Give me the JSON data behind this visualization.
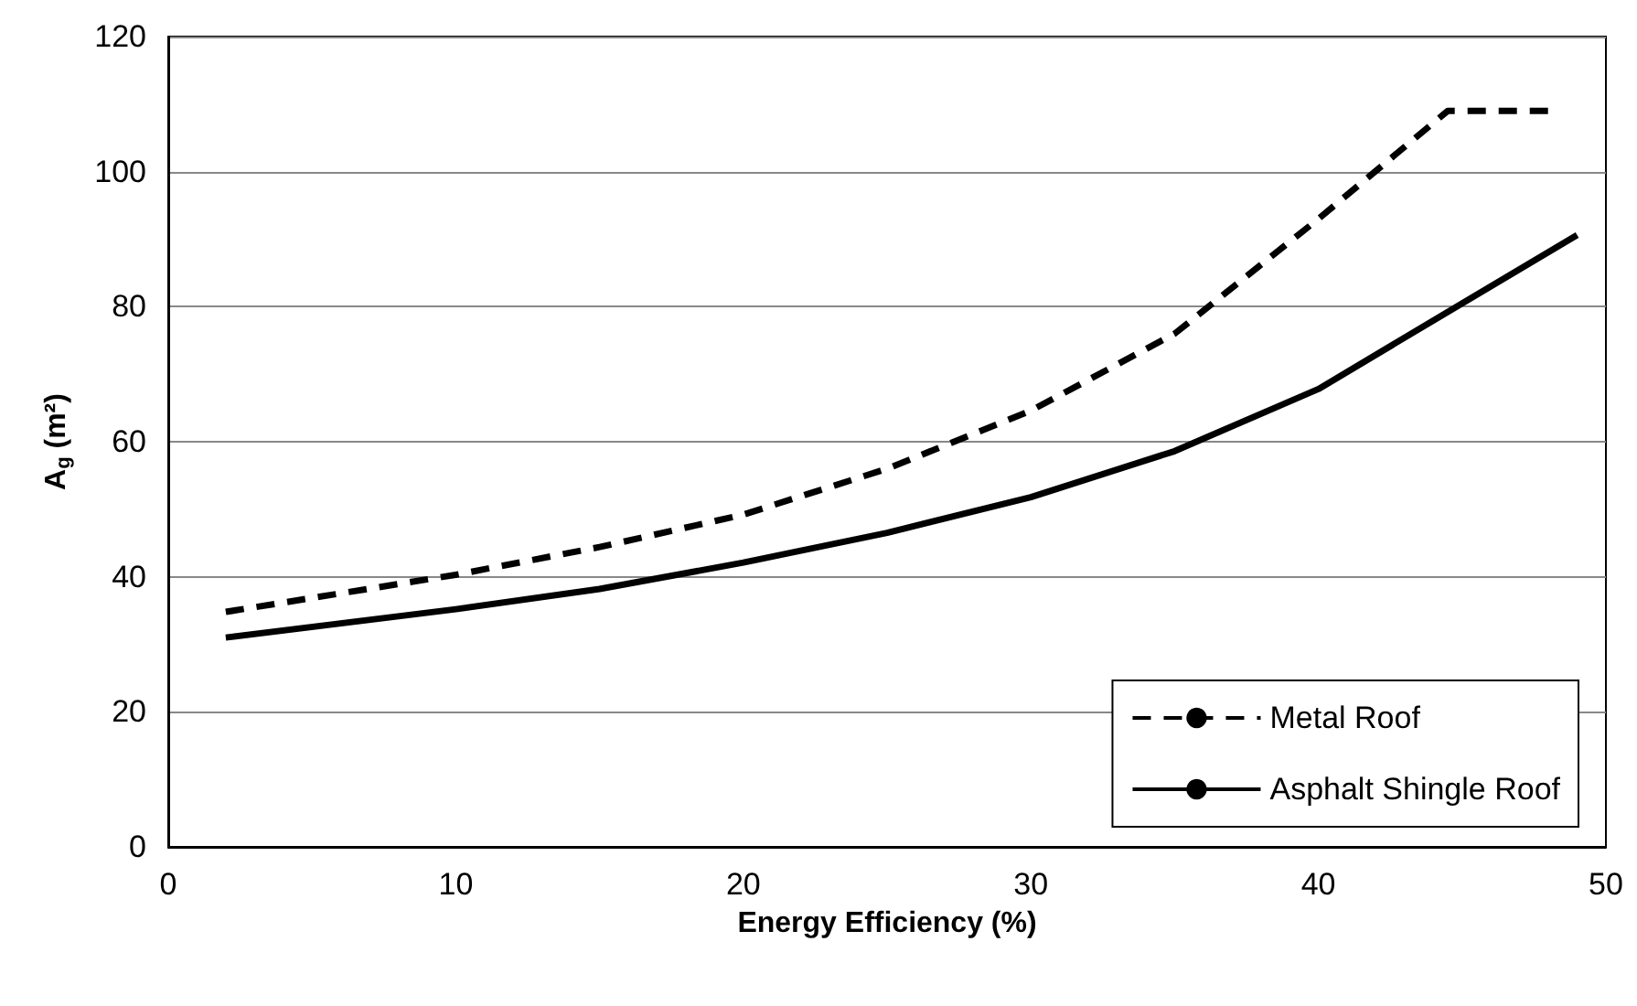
{
  "chart_data": {
    "type": "line",
    "xlabel": "Energy Efficiency (%)",
    "ylabel": "A$_{g}$ (m²)",
    "xlim": [
      0,
      50
    ],
    "xticks": [
      0,
      10,
      20,
      30,
      40,
      50
    ],
    "ylim": [
      0,
      120
    ],
    "yticks": [
      0,
      20,
      40,
      60,
      80,
      100,
      120
    ],
    "grid": "y",
    "legend": "bottom right",
    "marker": "none",
    "series": [
      {
        "name": "Metal Roof",
        "color": "#000000",
        "line_style": "dashed",
        "x": [
          2,
          10,
          15,
          20,
          25,
          30,
          35,
          40,
          44.5,
          48
        ],
        "values": [
          34.8,
          40.3,
          44.4,
          49.2,
          56,
          64.6,
          76,
          93,
          109,
          109
        ]
      },
      {
        "name": "Asphalt Shingle Roof",
        "color": "#000000",
        "line_style": "solid",
        "x": [
          2,
          10,
          15,
          20,
          25,
          30,
          35,
          40,
          45,
          49
        ],
        "values": [
          31,
          35.2,
          38.2,
          42.1,
          46.5,
          51.8,
          58.6,
          67.8,
          80.5,
          90.6
        ]
      }
    ]
  }
}
